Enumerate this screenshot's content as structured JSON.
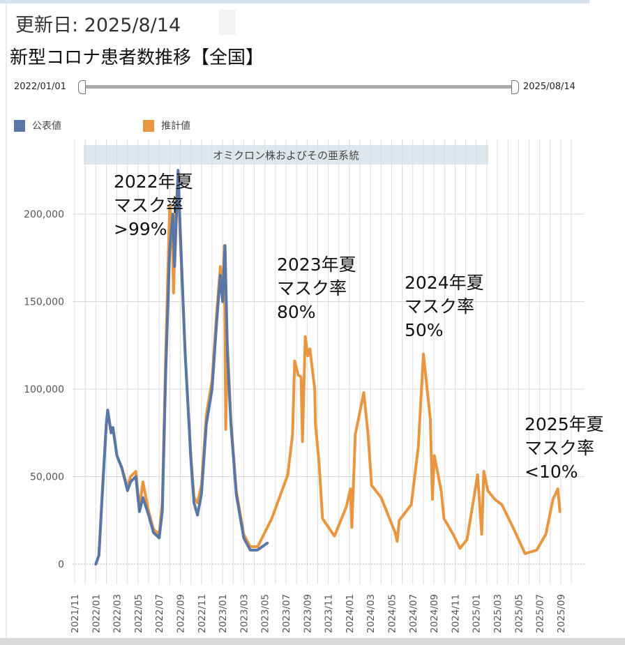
{
  "header": {
    "updated": "更新日: 2025/8/14",
    "title": "新型コロナ患者数推移【全国】"
  },
  "range_slider": {
    "start": "2022/01/01",
    "end": "2025/08/14"
  },
  "legend": [
    {
      "label": "公表値",
      "color": "#5876a6"
    },
    {
      "label": "推計値",
      "color": "#e8963f"
    }
  ],
  "annotations": [
    {
      "lines": [
        "2022年夏",
        "マスク率",
        ">99%"
      ]
    },
    {
      "lines": [
        "2023年夏",
        "マスク率",
        "80%"
      ]
    },
    {
      "lines": [
        "2024年夏",
        "マスク率",
        "50%"
      ]
    },
    {
      "lines": [
        "2025年夏",
        "マスク率",
        "<10%"
      ]
    }
  ],
  "chart_data": {
    "type": "line",
    "band": {
      "label": "オミクロン株およびその亜系統",
      "from": "2022-01-01",
      "to": "2025-01-31",
      "color": "#dde9ee"
    },
    "y_ticks": [
      0,
      50000,
      100000,
      150000,
      200000
    ],
    "y_tick_labels": [
      "0",
      "50,000",
      "100,000",
      "150,000",
      "200,000"
    ],
    "ylim": [
      0,
      240000
    ],
    "x_tick_labels": [
      "2021/11",
      "2022/01",
      "2022/03",
      "2022/05",
      "2022/07",
      "2022/09",
      "2022/11",
      "2023/01",
      "2023/03",
      "2023/05",
      "2023/07",
      "2023/09",
      "2023/11",
      "2024/01",
      "2024/03",
      "2024/05",
      "2024/07",
      "2024/09",
      "2024/11",
      "2025/01",
      "2025/03",
      "2025/05",
      "2025/07",
      "2025/09"
    ],
    "grid": "monthly vertical, horizontal at y ticks",
    "series": [
      {
        "name": "推計値",
        "color": "#e8963f",
        "points": [
          [
            "2022-01-01",
            0
          ],
          [
            "2022-01-10",
            5000
          ],
          [
            "2022-01-20",
            42000
          ],
          [
            "2022-02-01",
            80000
          ],
          [
            "2022-02-05",
            86000
          ],
          [
            "2022-02-15",
            75000
          ],
          [
            "2022-02-20",
            78000
          ],
          [
            "2022-03-01",
            62000
          ],
          [
            "2022-03-15",
            55000
          ],
          [
            "2022-04-01",
            44000
          ],
          [
            "2022-04-10",
            50000
          ],
          [
            "2022-04-25",
            53000
          ],
          [
            "2022-05-05",
            32000
          ],
          [
            "2022-05-15",
            47000
          ],
          [
            "2022-06-01",
            30000
          ],
          [
            "2022-06-15",
            20000
          ],
          [
            "2022-07-01",
            17000
          ],
          [
            "2022-07-10",
            35000
          ],
          [
            "2022-07-20",
            120000
          ],
          [
            "2022-08-01",
            205000
          ],
          [
            "2022-08-08",
            190000
          ],
          [
            "2022-08-12",
            155000
          ],
          [
            "2022-08-18",
            200000
          ],
          [
            "2022-08-25",
            222000
          ],
          [
            "2022-09-01",
            185000
          ],
          [
            "2022-09-15",
            120000
          ],
          [
            "2022-10-01",
            62000
          ],
          [
            "2022-10-10",
            38000
          ],
          [
            "2022-10-20",
            35000
          ],
          [
            "2022-11-01",
            45000
          ],
          [
            "2022-11-15",
            85000
          ],
          [
            "2022-12-01",
            105000
          ],
          [
            "2022-12-15",
            145000
          ],
          [
            "2022-12-25",
            170000
          ],
          [
            "2023-01-01",
            155000
          ],
          [
            "2023-01-06",
            182000
          ],
          [
            "2023-01-10",
            77000
          ],
          [
            "2023-01-15",
            125000
          ],
          [
            "2023-01-25",
            82000
          ],
          [
            "2023-02-10",
            42000
          ],
          [
            "2023-03-01",
            17000
          ],
          [
            "2023-03-20",
            10000
          ],
          [
            "2023-04-11",
            10000
          ],
          [
            "2023-05-21",
            26000
          ],
          [
            "2023-07-06",
            51000
          ],
          [
            "2023-07-20",
            74000
          ],
          [
            "2023-07-26",
            116000
          ],
          [
            "2023-08-06",
            108000
          ],
          [
            "2023-08-14",
            107000
          ],
          [
            "2023-08-18",
            70000
          ],
          [
            "2023-08-26",
            130000
          ],
          [
            "2023-09-03",
            119000
          ],
          [
            "2023-09-09",
            123000
          ],
          [
            "2023-09-23",
            100000
          ],
          [
            "2023-09-25",
            80000
          ],
          [
            "2023-10-05",
            58000
          ],
          [
            "2023-10-15",
            26000
          ],
          [
            "2023-11-19",
            16000
          ],
          [
            "2023-12-23",
            33000
          ],
          [
            "2024-01-04",
            43000
          ],
          [
            "2024-01-08",
            21000
          ],
          [
            "2024-01-18",
            74000
          ],
          [
            "2024-02-12",
            98000
          ],
          [
            "2024-02-24",
            75000
          ],
          [
            "2024-03-04",
            45000
          ],
          [
            "2024-04-01",
            38000
          ],
          [
            "2024-05-11",
            18000
          ],
          [
            "2024-05-17",
            13000
          ],
          [
            "2024-05-23",
            25000
          ],
          [
            "2024-06-27",
            34000
          ],
          [
            "2024-07-17",
            67000
          ],
          [
            "2024-08-01",
            120000
          ],
          [
            "2024-08-21",
            83000
          ],
          [
            "2024-08-27",
            37000
          ],
          [
            "2024-09-02",
            62000
          ],
          [
            "2024-09-22",
            42000
          ],
          [
            "2024-09-30",
            26000
          ],
          [
            "2024-10-26",
            17000
          ],
          [
            "2024-11-15",
            9000
          ],
          [
            "2024-12-05",
            14000
          ],
          [
            "2025-01-05",
            51000
          ],
          [
            "2025-01-17",
            17000
          ],
          [
            "2025-01-23",
            53000
          ],
          [
            "2025-02-04",
            42000
          ],
          [
            "2025-02-24",
            37000
          ],
          [
            "2025-03-14",
            34000
          ],
          [
            "2025-04-18",
            20000
          ],
          [
            "2025-05-20",
            6000
          ],
          [
            "2025-06-23",
            8000
          ],
          [
            "2025-07-19",
            17000
          ],
          [
            "2025-08-09",
            37000
          ],
          [
            "2025-08-23",
            43000
          ],
          [
            "2025-08-29",
            30000
          ]
        ]
      },
      {
        "name": "公表値",
        "color": "#5876a6",
        "points": [
          [
            "2022-01-01",
            0
          ],
          [
            "2022-01-10",
            5000
          ],
          [
            "2022-01-20",
            40000
          ],
          [
            "2022-02-01",
            80000
          ],
          [
            "2022-02-05",
            88000
          ],
          [
            "2022-02-15",
            75000
          ],
          [
            "2022-02-20",
            78000
          ],
          [
            "2022-03-01",
            62000
          ],
          [
            "2022-03-15",
            55000
          ],
          [
            "2022-04-01",
            42000
          ],
          [
            "2022-04-10",
            47000
          ],
          [
            "2022-04-25",
            50000
          ],
          [
            "2022-05-05",
            30000
          ],
          [
            "2022-05-15",
            38000
          ],
          [
            "2022-06-01",
            28000
          ],
          [
            "2022-06-15",
            18000
          ],
          [
            "2022-07-01",
            15000
          ],
          [
            "2022-07-10",
            30000
          ],
          [
            "2022-07-20",
            110000
          ],
          [
            "2022-08-01",
            180000
          ],
          [
            "2022-08-10",
            200000
          ],
          [
            "2022-08-15",
            170000
          ],
          [
            "2022-08-25",
            225000
          ],
          [
            "2022-09-01",
            190000
          ],
          [
            "2022-09-15",
            120000
          ],
          [
            "2022-10-01",
            60000
          ],
          [
            "2022-10-10",
            35000
          ],
          [
            "2022-10-20",
            28000
          ],
          [
            "2022-11-01",
            40000
          ],
          [
            "2022-11-15",
            80000
          ],
          [
            "2022-12-01",
            100000
          ],
          [
            "2022-12-15",
            140000
          ],
          [
            "2022-12-25",
            165000
          ],
          [
            "2023-01-01",
            150000
          ],
          [
            "2023-01-08",
            182000
          ],
          [
            "2023-01-15",
            120000
          ],
          [
            "2023-01-25",
            80000
          ],
          [
            "2023-02-10",
            40000
          ],
          [
            "2023-03-01",
            15000
          ],
          [
            "2023-03-20",
            8000
          ],
          [
            "2023-04-10",
            8000
          ],
          [
            "2023-05-08",
            12000
          ]
        ]
      }
    ]
  }
}
